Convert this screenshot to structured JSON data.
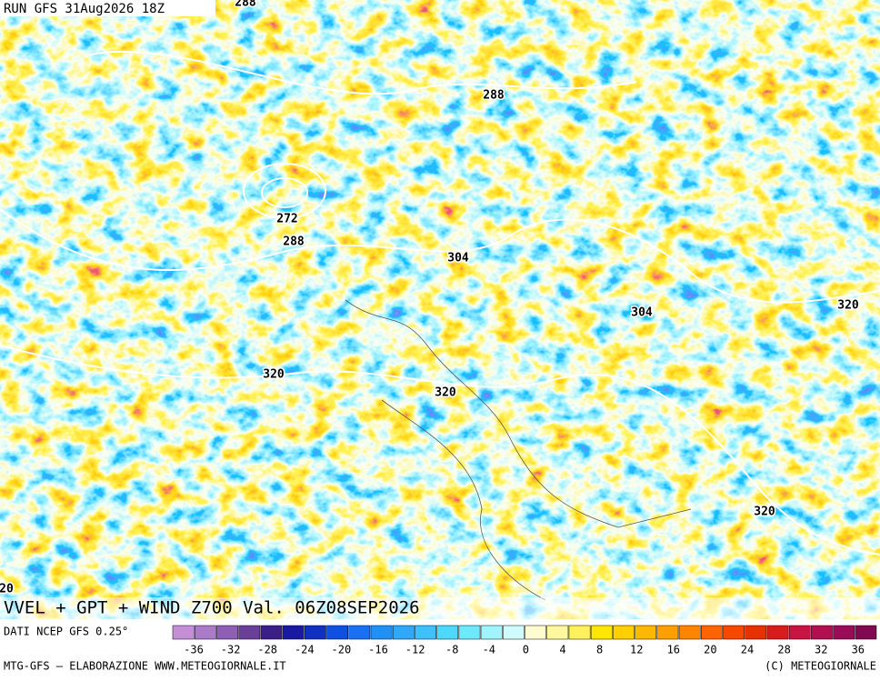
{
  "header": {
    "run": "RUN GFS 31Aug2026 18Z"
  },
  "map": {
    "contour_labels": [
      "288",
      "288",
      "272",
      "288",
      "304",
      "304",
      "320",
      "320",
      "320",
      "320",
      "20"
    ]
  },
  "title": "VVEL + GPT + WIND Z700 Val. 06Z08SEP2026",
  "legend": {
    "source": "DATI NCEP GFS 0.25°",
    "ticks": [
      -36,
      -32,
      -28,
      -24,
      -20,
      -16,
      -12,
      -8,
      -4,
      0,
      4,
      8,
      12,
      16,
      20,
      24,
      28,
      32,
      36
    ]
  },
  "footer": {
    "credit": "MTG-GFS – ELABORAZIONE WWW.METEOGIORNALE.IT",
    "copyright": "(C) METEOGIORNALE"
  }
}
